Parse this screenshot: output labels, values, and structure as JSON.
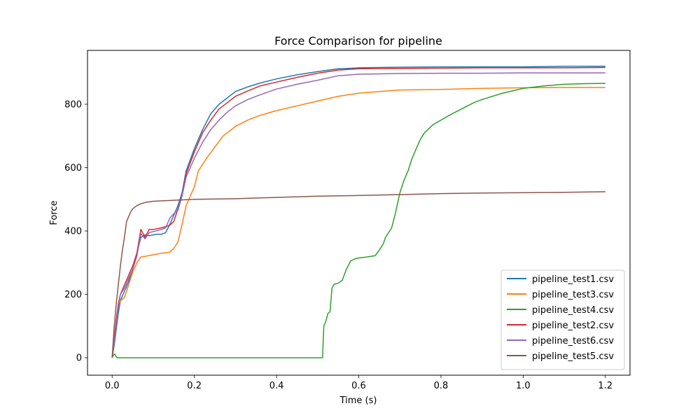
{
  "chart_data": {
    "type": "line",
    "title": "Force Comparison for pipeline",
    "xlabel": "Time (s)",
    "ylabel": "Force",
    "xlim": [
      -0.06,
      1.26
    ],
    "ylim": [
      -55,
      970
    ],
    "xticks": [
      0.0,
      0.2,
      0.4,
      0.6,
      0.8,
      1.0,
      1.2
    ],
    "xtick_labels": [
      "0.0",
      "0.2",
      "0.4",
      "0.6",
      "0.8",
      "1.0",
      "1.2"
    ],
    "yticks": [
      0,
      200,
      400,
      600,
      800
    ],
    "ytick_labels": [
      "0",
      "200",
      "400",
      "600",
      "800"
    ],
    "grid": false,
    "legend_position": "bottom-right",
    "series": [
      {
        "name": "pipeline_test1.csv",
        "color": "#1f77b4",
        "points": [
          [
            0,
            0
          ],
          [
            0.005,
            40
          ],
          [
            0.01,
            90
          ],
          [
            0.015,
            140
          ],
          [
            0.02,
            180
          ],
          [
            0.03,
            210
          ],
          [
            0.04,
            240
          ],
          [
            0.05,
            280
          ],
          [
            0.06,
            330
          ],
          [
            0.07,
            380
          ],
          [
            0.08,
            388
          ],
          [
            0.09,
            385
          ],
          [
            0.1,
            388
          ],
          [
            0.11,
            390
          ],
          [
            0.12,
            390
          ],
          [
            0.13,
            395
          ],
          [
            0.14,
            420
          ],
          [
            0.15,
            450
          ],
          [
            0.16,
            480
          ],
          [
            0.17,
            520
          ],
          [
            0.18,
            590
          ],
          [
            0.2,
            660
          ],
          [
            0.22,
            720
          ],
          [
            0.24,
            770
          ],
          [
            0.26,
            800
          ],
          [
            0.28,
            820
          ],
          [
            0.3,
            840
          ],
          [
            0.33,
            855
          ],
          [
            0.36,
            867
          ],
          [
            0.4,
            880
          ],
          [
            0.45,
            893
          ],
          [
            0.5,
            903
          ],
          [
            0.55,
            912
          ],
          [
            0.6,
            915
          ],
          [
            0.7,
            917
          ],
          [
            0.8,
            918
          ],
          [
            0.9,
            918
          ],
          [
            1.0,
            918
          ],
          [
            1.1,
            920
          ],
          [
            1.2,
            920
          ]
        ]
      },
      {
        "name": "pipeline_test3.csv",
        "color": "#ff7f0e",
        "points": [
          [
            0,
            0
          ],
          [
            0.005,
            60
          ],
          [
            0.01,
            110
          ],
          [
            0.015,
            160
          ],
          [
            0.02,
            180
          ],
          [
            0.03,
            190
          ],
          [
            0.04,
            230
          ],
          [
            0.05,
            270
          ],
          [
            0.06,
            300
          ],
          [
            0.07,
            318
          ],
          [
            0.08,
            320
          ],
          [
            0.1,
            325
          ],
          [
            0.12,
            330
          ],
          [
            0.14,
            333
          ],
          [
            0.15,
            345
          ],
          [
            0.16,
            365
          ],
          [
            0.17,
            420
          ],
          [
            0.18,
            480
          ],
          [
            0.2,
            540
          ],
          [
            0.21,
            590
          ],
          [
            0.23,
            630
          ],
          [
            0.25,
            665
          ],
          [
            0.27,
            700
          ],
          [
            0.3,
            730
          ],
          [
            0.33,
            750
          ],
          [
            0.36,
            765
          ],
          [
            0.4,
            780
          ],
          [
            0.45,
            795
          ],
          [
            0.5,
            810
          ],
          [
            0.55,
            825
          ],
          [
            0.6,
            835
          ],
          [
            0.65,
            840
          ],
          [
            0.7,
            845
          ],
          [
            0.8,
            847
          ],
          [
            0.9,
            850
          ],
          [
            1.0,
            852
          ],
          [
            1.1,
            853
          ],
          [
            1.2,
            853
          ]
        ]
      },
      {
        "name": "pipeline_test4.csv",
        "color": "#2ca02c",
        "points": [
          [
            0,
            0
          ],
          [
            0.003,
            8
          ],
          [
            0.006,
            12
          ],
          [
            0.009,
            5
          ],
          [
            0.012,
            0
          ],
          [
            0.1,
            0
          ],
          [
            0.2,
            0
          ],
          [
            0.3,
            0
          ],
          [
            0.4,
            0
          ],
          [
            0.5,
            0
          ],
          [
            0.512,
            0
          ],
          [
            0.515,
            100
          ],
          [
            0.52,
            115
          ],
          [
            0.525,
            140
          ],
          [
            0.53,
            145
          ],
          [
            0.535,
            220
          ],
          [
            0.54,
            232
          ],
          [
            0.55,
            235
          ],
          [
            0.56,
            245
          ],
          [
            0.57,
            280
          ],
          [
            0.58,
            305
          ],
          [
            0.59,
            312
          ],
          [
            0.6,
            315
          ],
          [
            0.62,
            318
          ],
          [
            0.64,
            322
          ],
          [
            0.65,
            340
          ],
          [
            0.66,
            360
          ],
          [
            0.665,
            380
          ],
          [
            0.67,
            390
          ],
          [
            0.68,
            410
          ],
          [
            0.69,
            460
          ],
          [
            0.7,
            520
          ],
          [
            0.71,
            560
          ],
          [
            0.72,
            590
          ],
          [
            0.73,
            630
          ],
          [
            0.74,
            660
          ],
          [
            0.75,
            690
          ],
          [
            0.76,
            710
          ],
          [
            0.78,
            735
          ],
          [
            0.8,
            750
          ],
          [
            0.82,
            765
          ],
          [
            0.85,
            785
          ],
          [
            0.88,
            805
          ],
          [
            0.9,
            815
          ],
          [
            0.95,
            835
          ],
          [
            1.0,
            850
          ],
          [
            1.05,
            858
          ],
          [
            1.1,
            863
          ],
          [
            1.15,
            865
          ],
          [
            1.2,
            866
          ]
        ]
      },
      {
        "name": "pipeline_test2.csv",
        "color": "#d62728",
        "points": [
          [
            0,
            0
          ],
          [
            0.005,
            60
          ],
          [
            0.01,
            120
          ],
          [
            0.015,
            170
          ],
          [
            0.02,
            200
          ],
          [
            0.03,
            230
          ],
          [
            0.04,
            260
          ],
          [
            0.05,
            290
          ],
          [
            0.06,
            330
          ],
          [
            0.07,
            405
          ],
          [
            0.08,
            380
          ],
          [
            0.09,
            405
          ],
          [
            0.1,
            405
          ],
          [
            0.12,
            410
          ],
          [
            0.14,
            418
          ],
          [
            0.15,
            430
          ],
          [
            0.16,
            470
          ],
          [
            0.17,
            510
          ],
          [
            0.18,
            580
          ],
          [
            0.2,
            650
          ],
          [
            0.22,
            710
          ],
          [
            0.24,
            750
          ],
          [
            0.26,
            785
          ],
          [
            0.28,
            805
          ],
          [
            0.3,
            825
          ],
          [
            0.33,
            842
          ],
          [
            0.36,
            858
          ],
          [
            0.4,
            870
          ],
          [
            0.45,
            885
          ],
          [
            0.5,
            898
          ],
          [
            0.55,
            908
          ],
          [
            0.6,
            912
          ],
          [
            0.7,
            913
          ],
          [
            0.8,
            914
          ],
          [
            0.9,
            915
          ],
          [
            1.0,
            915
          ],
          [
            1.1,
            915
          ],
          [
            1.2,
            916
          ]
        ]
      },
      {
        "name": "pipeline_test6.csv",
        "color": "#9467bd",
        "points": [
          [
            0,
            0
          ],
          [
            0.005,
            50
          ],
          [
            0.01,
            100
          ],
          [
            0.015,
            160
          ],
          [
            0.02,
            200
          ],
          [
            0.03,
            220
          ],
          [
            0.04,
            250
          ],
          [
            0.05,
            280
          ],
          [
            0.06,
            320
          ],
          [
            0.07,
            392
          ],
          [
            0.08,
            375
          ],
          [
            0.09,
            395
          ],
          [
            0.1,
            398
          ],
          [
            0.12,
            405
          ],
          [
            0.13,
            410
          ],
          [
            0.14,
            440
          ],
          [
            0.15,
            455
          ],
          [
            0.16,
            465
          ],
          [
            0.17,
            510
          ],
          [
            0.18,
            570
          ],
          [
            0.2,
            630
          ],
          [
            0.22,
            680
          ],
          [
            0.24,
            720
          ],
          [
            0.26,
            750
          ],
          [
            0.28,
            775
          ],
          [
            0.3,
            795
          ],
          [
            0.33,
            815
          ],
          [
            0.36,
            830
          ],
          [
            0.4,
            848
          ],
          [
            0.45,
            863
          ],
          [
            0.5,
            876
          ],
          [
            0.55,
            890
          ],
          [
            0.6,
            895
          ],
          [
            0.7,
            897
          ],
          [
            0.8,
            898
          ],
          [
            0.9,
            898
          ],
          [
            1.0,
            899
          ],
          [
            1.1,
            899
          ],
          [
            1.2,
            899
          ]
        ]
      },
      {
        "name": "pipeline_test5.csv",
        "color": "#8c564b",
        "points": [
          [
            0,
            0
          ],
          [
            0.005,
            100
          ],
          [
            0.01,
            170
          ],
          [
            0.015,
            230
          ],
          [
            0.02,
            290
          ],
          [
            0.025,
            340
          ],
          [
            0.03,
            380
          ],
          [
            0.035,
            430
          ],
          [
            0.04,
            445
          ],
          [
            0.045,
            460
          ],
          [
            0.05,
            470
          ],
          [
            0.06,
            480
          ],
          [
            0.07,
            486
          ],
          [
            0.08,
            490
          ],
          [
            0.1,
            494
          ],
          [
            0.15,
            497
          ],
          [
            0.2,
            500
          ],
          [
            0.3,
            502
          ],
          [
            0.4,
            506
          ],
          [
            0.5,
            510
          ],
          [
            0.6,
            512
          ],
          [
            0.7,
            515
          ],
          [
            0.8,
            518
          ],
          [
            0.9,
            520
          ],
          [
            1.0,
            521
          ],
          [
            1.1,
            522
          ],
          [
            1.2,
            524
          ]
        ]
      }
    ]
  }
}
